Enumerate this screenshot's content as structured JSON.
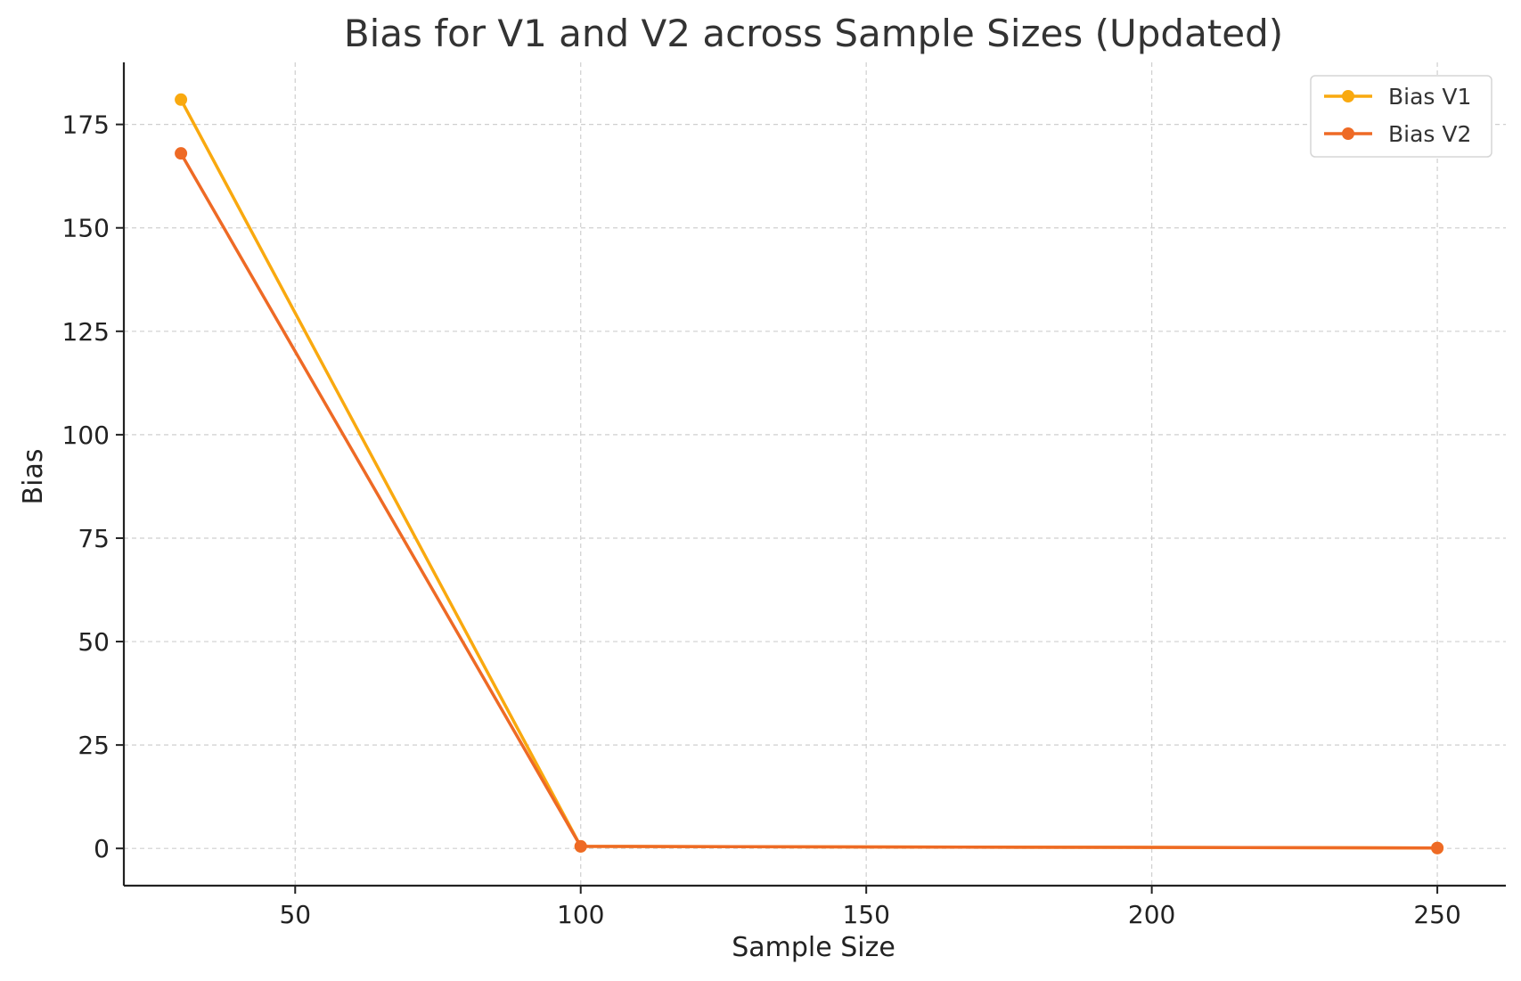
{
  "chart_data": {
    "type": "line",
    "title": "Bias for V1 and V2 across Sample Sizes (Updated)",
    "xlabel": "Sample Size",
    "ylabel": "Bias",
    "x": [
      30,
      100,
      250
    ],
    "xlim": [
      20,
      262
    ],
    "ylim": [
      -9,
      190
    ],
    "xticks": [
      50,
      100,
      150,
      200,
      250
    ],
    "yticks": [
      0,
      25,
      50,
      75,
      100,
      125,
      150,
      175
    ],
    "grid": true,
    "legend_position": "top-right",
    "series": [
      {
        "name": "Bias V1",
        "values": [
          181,
          0.5,
          0.1
        ],
        "color": "#F9A90F"
      },
      {
        "name": "Bias V2",
        "values": [
          168,
          0.5,
          0.1
        ],
        "color": "#EE6A25"
      }
    ]
  }
}
